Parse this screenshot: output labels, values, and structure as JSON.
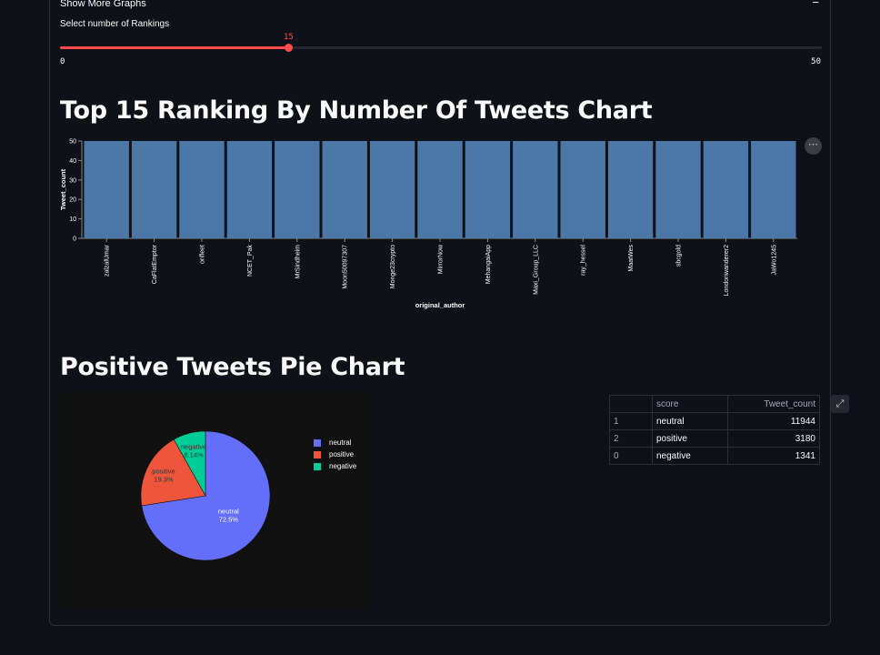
{
  "expander": {
    "title": "Show More Graphs",
    "toggle": "−"
  },
  "slider": {
    "label": "Select number of Rankings",
    "value": 15,
    "min": 0,
    "max": 50,
    "min_label": "0",
    "max_label": "50",
    "value_label": "15",
    "color": "#ff4b4b"
  },
  "bar_section": {
    "title": "Top 15 Ranking By Number Of Tweets Chart",
    "menu_label": "⋯"
  },
  "pie_section": {
    "title": "Positive Tweets Pie Chart"
  },
  "chart_data": [
    {
      "type": "bar",
      "xlabel": "original_author",
      "ylabel": "Tweet_count",
      "categories": [
        "zalzalUmar",
        "CaFlatEmptor",
        "onfleet",
        "NCET_Pak",
        "MrSindheim",
        "Moon50097307",
        "Monge23crypto",
        "MirrorNow",
        "MehangaiApp",
        "Maxi_Group_LLC",
        "ray_hessel",
        "MaatWes",
        "sbcgold",
        "Londonwanderer2",
        "JaWo1245"
      ],
      "values": [
        50,
        50,
        50,
        50,
        50,
        50,
        50,
        50,
        50,
        50,
        50,
        50,
        50,
        50,
        50
      ],
      "ylim": [
        0,
        50
      ],
      "yticks": [
        0,
        10,
        20,
        30,
        40,
        50
      ],
      "grid": false,
      "color": "#4c78a8"
    },
    {
      "type": "pie",
      "categories": [
        "neutral",
        "positive",
        "negative"
      ],
      "values": [
        11944,
        3180,
        1341
      ],
      "percent_labels": [
        "72.5%",
        "19.3%",
        "8.14%"
      ],
      "colors": [
        "#636efa",
        "#ef553b",
        "#00cc96"
      ],
      "legend": "right"
    },
    {
      "type": "table",
      "columns": [
        "",
        "score",
        "Tweet_count"
      ],
      "rows": [
        {
          "index": "1",
          "score": "neutral",
          "count": "11944"
        },
        {
          "index": "2",
          "score": "positive",
          "count": "3180"
        },
        {
          "index": "0",
          "score": "negative",
          "count": "1341"
        }
      ]
    }
  ],
  "icons": {
    "expand": "expand-icon",
    "menu": "more-horizontal-icon"
  },
  "expand_glyph": "⤢"
}
